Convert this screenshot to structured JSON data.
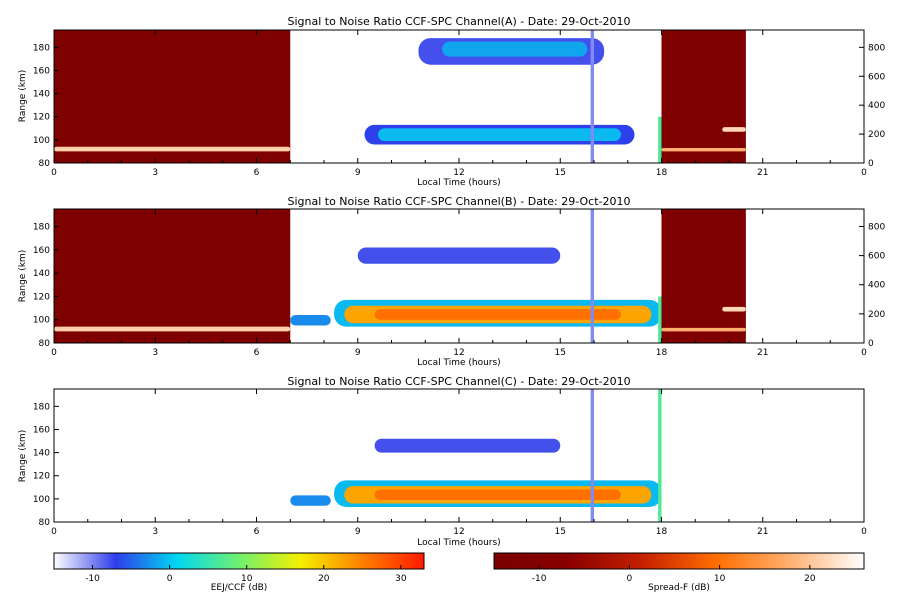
{
  "chart_data": [
    {
      "type": "heatmap",
      "title": "Signal to Noise Ratio CCF-SPC Channel(A) - Date: 29-Oct-2010",
      "xlabel": "Local Time (hours)",
      "ylabel": "Range (km)",
      "xlim": [
        0,
        24
      ],
      "ylim": [
        80,
        195
      ],
      "y2lim": [
        0,
        920
      ],
      "xticks": [
        "0",
        "3",
        "6",
        "9",
        "12",
        "15",
        "18",
        "21",
        "0"
      ],
      "yticks": [
        80,
        100,
        120,
        140,
        160,
        180
      ],
      "y2ticks": [
        0,
        200,
        400,
        600,
        800
      ],
      "spreadf_blocks": [
        [
          0,
          7
        ],
        [
          18,
          20.5
        ]
      ],
      "layers": [
        {
          "colormap": "spreadf",
          "t0": 0.0,
          "t1": 7.0,
          "y0": 90,
          "y1": 94,
          "level": 0.88
        },
        {
          "colormap": "spreadf",
          "t0": 18.0,
          "t1": 20.5,
          "y0": 90,
          "y1": 93,
          "level": 0.8
        },
        {
          "colormap": "spreadf",
          "t0": 19.8,
          "t1": 20.5,
          "y0": 107,
          "y1": 111,
          "level": 0.9
        },
        {
          "colormap": "eej",
          "t0": 9.2,
          "t1": 17.2,
          "y0": 96,
          "y1": 113,
          "level": 0.17
        },
        {
          "colormap": "eej",
          "t0": 9.6,
          "t1": 16.8,
          "y0": 99,
          "y1": 110,
          "level": 0.3
        },
        {
          "colormap": "eej",
          "t0": 10.8,
          "t1": 16.3,
          "y0": 165,
          "y1": 188,
          "level": 0.15
        },
        {
          "colormap": "eej",
          "t0": 11.5,
          "t1": 15.8,
          "y0": 172,
          "y1": 185,
          "level": 0.28
        },
        {
          "colormap": "eej",
          "t0": 15.9,
          "t1": 16.0,
          "y0": 80,
          "y1": 195,
          "level": 0.1
        },
        {
          "colormap": "eej",
          "t0": 17.9,
          "t1": 18.0,
          "y0": 80,
          "y1": 120,
          "level": 0.45
        }
      ]
    },
    {
      "type": "heatmap",
      "title": "Signal to Noise Ratio CCF-SPC Channel(B) - Date: 29-Oct-2010",
      "xlabel": "Local Time (hours)",
      "ylabel": "Range (km)",
      "xlim": [
        0,
        24
      ],
      "ylim": [
        80,
        195
      ],
      "y2lim": [
        0,
        920
      ],
      "xticks": [
        "0",
        "3",
        "6",
        "9",
        "12",
        "15",
        "18",
        "21",
        "0"
      ],
      "yticks": [
        80,
        100,
        120,
        140,
        160,
        180
      ],
      "y2ticks": [
        0,
        200,
        400,
        600,
        800
      ],
      "spreadf_blocks": [
        [
          0,
          7
        ],
        [
          18,
          20.5
        ]
      ],
      "layers": [
        {
          "colormap": "spreadf",
          "t0": 0.0,
          "t1": 7.0,
          "y0": 90,
          "y1": 94,
          "level": 0.88
        },
        {
          "colormap": "spreadf",
          "t0": 18.0,
          "t1": 20.5,
          "y0": 90,
          "y1": 93,
          "level": 0.8
        },
        {
          "colormap": "spreadf",
          "t0": 19.8,
          "t1": 20.5,
          "y0": 107,
          "y1": 111,
          "level": 0.9
        },
        {
          "colormap": "eej",
          "t0": 7.0,
          "t1": 8.2,
          "y0": 95,
          "y1": 104,
          "level": 0.25
        },
        {
          "colormap": "eej",
          "t0": 8.3,
          "t1": 18.0,
          "y0": 94,
          "y1": 117,
          "level": 0.3
        },
        {
          "colormap": "eej",
          "t0": 8.6,
          "t1": 17.7,
          "y0": 97,
          "y1": 112,
          "level": 0.78
        },
        {
          "colormap": "eej",
          "t0": 9.5,
          "t1": 16.8,
          "y0": 100,
          "y1": 109,
          "level": 0.86
        },
        {
          "colormap": "eej",
          "t0": 9.0,
          "t1": 15.0,
          "y0": 148,
          "y1": 162,
          "level": 0.15
        },
        {
          "colormap": "eej",
          "t0": 15.9,
          "t1": 16.0,
          "y0": 80,
          "y1": 195,
          "level": 0.1
        },
        {
          "colormap": "eej",
          "t0": 17.9,
          "t1": 18.0,
          "y0": 80,
          "y1": 120,
          "level": 0.45
        }
      ]
    },
    {
      "type": "heatmap",
      "title": "Signal to Noise Ratio CCF-SPC Channel(C) - Date: 29-Oct-2010",
      "xlabel": "Local Time (hours)",
      "ylabel": "Range (km)",
      "xlim": [
        0,
        24
      ],
      "ylim": [
        80,
        195
      ],
      "xticks": [
        "0",
        "3",
        "6",
        "9",
        "12",
        "15",
        "18",
        "21",
        "0"
      ],
      "yticks": [
        80,
        100,
        120,
        140,
        160,
        180
      ],
      "spreadf_blocks": [],
      "layers": [
        {
          "colormap": "eej",
          "t0": 7.0,
          "t1": 8.2,
          "y0": 94,
          "y1": 103,
          "level": 0.25
        },
        {
          "colormap": "eej",
          "t0": 8.3,
          "t1": 18.0,
          "y0": 93,
          "y1": 116,
          "level": 0.3
        },
        {
          "colormap": "eej",
          "t0": 8.6,
          "t1": 17.7,
          "y0": 96,
          "y1": 111,
          "level": 0.78
        },
        {
          "colormap": "eej",
          "t0": 9.5,
          "t1": 16.8,
          "y0": 99,
          "y1": 108,
          "level": 0.86
        },
        {
          "colormap": "eej",
          "t0": 9.5,
          "t1": 15.0,
          "y0": 140,
          "y1": 152,
          "level": 0.15
        },
        {
          "colormap": "eej",
          "t0": 15.9,
          "t1": 16.0,
          "y0": 80,
          "y1": 195,
          "level": 0.1
        },
        {
          "colormap": "eej",
          "t0": 17.9,
          "t1": 18.0,
          "y0": 80,
          "y1": 195,
          "level": 0.45
        }
      ]
    }
  ],
  "colorbars": [
    {
      "label": "EEJ/CCF (dB)",
      "colormap": "eej",
      "range": [
        -15,
        33
      ],
      "ticks": [
        -10,
        0,
        10,
        20,
        30
      ]
    },
    {
      "label": "Spread-F (dB)",
      "colormap": "spreadf",
      "range": [
        -15,
        26
      ],
      "ticks": [
        -10,
        0,
        10,
        20
      ]
    }
  ],
  "colors": {
    "eej": [
      "#ffffff",
      "#2f3dea",
      "#00d8f0",
      "#70f070",
      "#f5f000",
      "#ff8000",
      "#ff1a00"
    ],
    "spreadf": [
      "#7a0000",
      "#8a0000",
      "#c52000",
      "#ff6e00",
      "#ffb070",
      "#ffffff"
    ]
  }
}
